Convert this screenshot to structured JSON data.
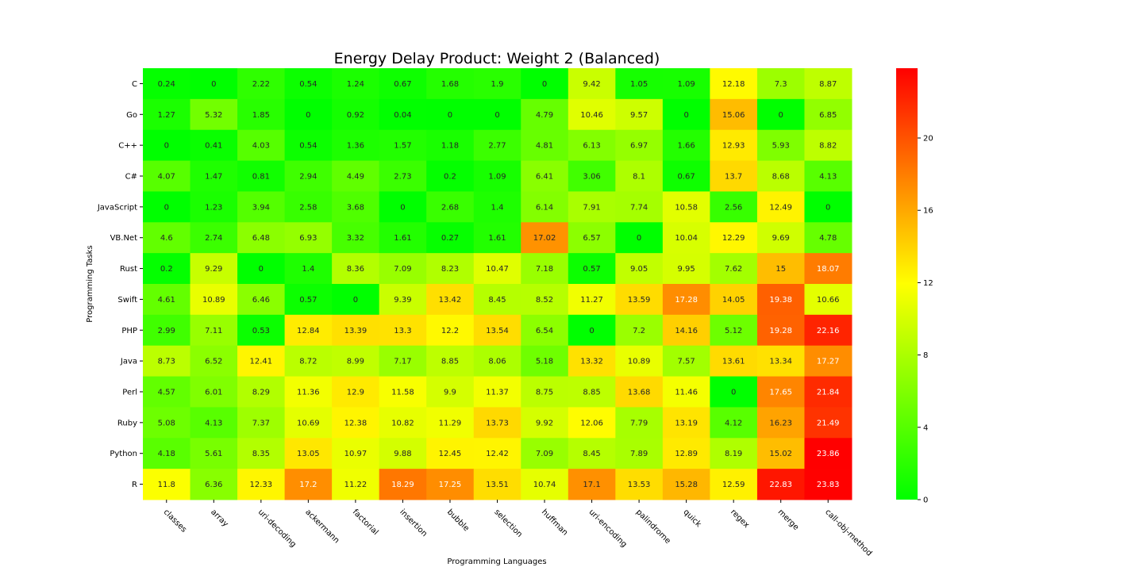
{
  "chart_data": {
    "type": "heatmap",
    "title": "Energy Delay Product: Weight 2 (Balanced)",
    "xlabel": "Programming Languages",
    "ylabel": "Programming Tasks",
    "x_categories": [
      "classes",
      "array",
      "uri-decoding",
      "ackermann",
      "factorial",
      "insertion",
      "bubble",
      "selection",
      "huffman",
      "uri-encoding",
      "palindrome",
      "quick",
      "regex",
      "merge",
      "call-obj-method"
    ],
    "y_categories": [
      "C",
      "Go",
      "C++",
      "C#",
      "JavaScript",
      "VB.Net",
      "Rust",
      "Swift",
      "PHP",
      "Java",
      "Perl",
      "Ruby",
      "Python",
      "R"
    ],
    "values": [
      [
        0.24,
        0,
        2.22,
        0.54,
        1.24,
        0.67,
        1.68,
        1.9,
        0,
        9.42,
        1.05,
        1.09,
        12.18,
        7.3,
        8.87
      ],
      [
        1.27,
        5.32,
        1.85,
        0,
        0.92,
        0.04,
        0,
        0,
        4.79,
        10.46,
        9.57,
        0,
        15.06,
        0,
        6.85
      ],
      [
        0,
        0.41,
        4.03,
        0.54,
        1.36,
        1.57,
        1.18,
        2.77,
        4.81,
        6.13,
        6.97,
        1.66,
        12.93,
        5.93,
        8.82
      ],
      [
        4.07,
        1.47,
        0.81,
        2.94,
        4.49,
        2.73,
        0.2,
        1.09,
        6.41,
        3.06,
        8.1,
        0.67,
        13.7,
        8.68,
        4.13
      ],
      [
        0,
        1.23,
        3.94,
        2.58,
        3.68,
        0,
        2.68,
        1.4,
        6.14,
        7.91,
        7.74,
        10.58,
        2.56,
        12.49,
        0
      ],
      [
        4.6,
        2.74,
        6.48,
        6.93,
        3.32,
        1.61,
        0.27,
        1.61,
        17.02,
        6.57,
        0,
        10.04,
        12.29,
        9.69,
        4.78
      ],
      [
        0.2,
        9.29,
        0,
        1.4,
        8.36,
        7.09,
        8.23,
        10.47,
        7.18,
        0.57,
        9.05,
        9.95,
        7.62,
        15,
        18.07
      ],
      [
        4.61,
        10.89,
        6.46,
        0.57,
        0,
        9.39,
        13.42,
        8.45,
        8.52,
        11.27,
        13.59,
        17.28,
        14.05,
        19.38,
        10.66
      ],
      [
        2.99,
        7.11,
        0.53,
        12.84,
        13.39,
        13.3,
        12.2,
        13.54,
        6.54,
        0,
        7.2,
        14.16,
        5.12,
        19.28,
        22.16
      ],
      [
        8.73,
        6.52,
        12.41,
        8.72,
        8.99,
        7.17,
        8.85,
        8.06,
        5.18,
        13.32,
        10.89,
        7.57,
        13.61,
        13.34,
        17.27
      ],
      [
        4.57,
        6.01,
        8.29,
        11.36,
        12.9,
        11.58,
        9.9,
        11.37,
        8.75,
        8.85,
        13.68,
        11.46,
        0,
        17.65,
        21.84
      ],
      [
        5.08,
        4.13,
        7.37,
        10.69,
        12.38,
        10.82,
        11.29,
        13.73,
        9.92,
        12.06,
        7.79,
        13.19,
        4.12,
        16.23,
        21.49
      ],
      [
        4.18,
        5.61,
        8.35,
        13.05,
        10.97,
        9.88,
        12.45,
        12.42,
        7.09,
        8.45,
        7.89,
        12.89,
        8.19,
        15.02,
        23.86
      ],
      [
        11.8,
        6.36,
        12.33,
        17.2,
        11.22,
        18.29,
        17.25,
        13.51,
        10.74,
        17.1,
        13.53,
        15.28,
        12.59,
        22.83,
        23.83
      ]
    ],
    "vmin": 0,
    "vmax": 23.86,
    "colorbar_ticks": [
      0,
      4,
      8,
      12,
      16,
      20
    ],
    "colormap": [
      "#00ff00",
      "#ffff00",
      "#ff0000"
    ],
    "colorbar_position": "right"
  }
}
